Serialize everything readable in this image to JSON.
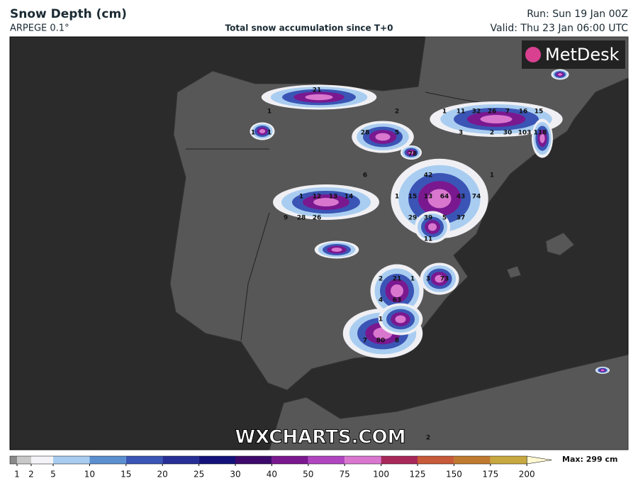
{
  "header": {
    "title": "Snow Depth (cm)",
    "model": "ARPEGE 0.1°",
    "subtitle": "Total snow accumulation since T+0",
    "run": "Run: Sun 19 Jan 00Z",
    "valid": "Valid: Thu 23 Jan 06:00 UTC"
  },
  "logo": "MetDesk",
  "watermark": "WXCHARTS.COM",
  "map": {
    "point_labels": [
      21,
      1,
      1,
      1,
      2,
      1,
      11,
      32,
      26,
      7,
      16,
      15,
      3,
      2,
      30,
      103,
      118,
      28,
      5,
      78,
      42,
      1,
      6,
      1,
      12,
      13,
      14,
      1,
      15,
      13,
      64,
      43,
      74,
      9,
      28,
      26,
      29,
      39,
      5,
      37,
      11,
      2,
      21,
      1,
      3,
      73,
      4,
      63,
      1,
      80,
      8,
      7,
      2
    ]
  },
  "legend": {
    "ticks": [
      1,
      2,
      5,
      10,
      15,
      20,
      25,
      30,
      40,
      50,
      75,
      100,
      125,
      150,
      175,
      200
    ],
    "colors": [
      "#8a8a8a",
      "#c8c8c8",
      "#f4f4f8",
      "#a9cdf0",
      "#5b8fd0",
      "#3a55b5",
      "#262f95",
      "#14127a",
      "#3d0a6b",
      "#7a1890",
      "#b045c0",
      "#d977cf",
      "#a8285a",
      "#c85a3a",
      "#c07a30",
      "#c8a840",
      "#e8d890",
      "#fff8d0"
    ],
    "max": "Max: 299 cm"
  }
}
